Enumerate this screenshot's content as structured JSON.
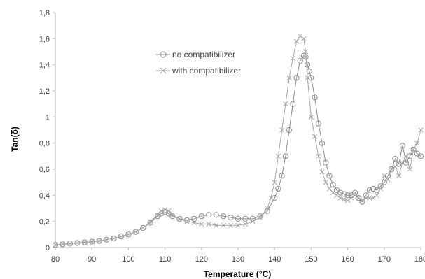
{
  "chart_data": {
    "type": "scatter",
    "xlabel": "Temperature  (°C)",
    "ylabel": "Tan(δ)",
    "xlim": [
      80,
      180
    ],
    "ylim": [
      0,
      1.8
    ],
    "x_ticks": [
      "80",
      "90",
      "100",
      "110",
      "120",
      "130",
      "140",
      "150",
      "160",
      "170",
      "180"
    ],
    "y_ticks": [
      "0",
      "0,2",
      "0,4",
      "0,6",
      "0,8",
      "1",
      "1,2",
      "1,4",
      "1,6",
      "1,8"
    ],
    "grid": false,
    "legend_position": "top-center",
    "series": [
      {
        "name": "no compatibilizer",
        "marker": "circle",
        "color": "#8c8c8c",
        "x": [
          80,
          82,
          84,
          86,
          88,
          90,
          92,
          94,
          96,
          98,
          100,
          102,
          104,
          106,
          108,
          109,
          110,
          111,
          112,
          114,
          116,
          118,
          120,
          122,
          124,
          126,
          128,
          130,
          132,
          134,
          136,
          138,
          140,
          141,
          142,
          143,
          144,
          145,
          146,
          147,
          148,
          148.5,
          149,
          149.5,
          150,
          151,
          152,
          153,
          154,
          155,
          156,
          157,
          158,
          159,
          160,
          161,
          162,
          163,
          164,
          165,
          166,
          167,
          168,
          169,
          170,
          171,
          172,
          173,
          174,
          175,
          176,
          177,
          178,
          179,
          180
        ],
        "y": [
          0.02,
          0.025,
          0.03,
          0.035,
          0.04,
          0.045,
          0.05,
          0.06,
          0.07,
          0.085,
          0.1,
          0.12,
          0.15,
          0.19,
          0.24,
          0.26,
          0.27,
          0.26,
          0.24,
          0.22,
          0.21,
          0.22,
          0.24,
          0.25,
          0.25,
          0.24,
          0.23,
          0.22,
          0.22,
          0.22,
          0.24,
          0.28,
          0.38,
          0.45,
          0.55,
          0.7,
          0.9,
          1.1,
          1.3,
          1.43,
          1.47,
          1.46,
          1.4,
          1.35,
          1.3,
          1.15,
          0.95,
          0.8,
          0.65,
          0.55,
          0.48,
          0.44,
          0.42,
          0.41,
          0.4,
          0.4,
          0.42,
          0.38,
          0.35,
          0.4,
          0.44,
          0.45,
          0.44,
          0.47,
          0.5,
          0.55,
          0.6,
          0.68,
          0.64,
          0.78,
          0.65,
          0.7,
          0.75,
          0.72,
          0.7
        ]
      },
      {
        "name": "with compatibilizer",
        "marker": "x",
        "color": "#a6a6a6",
        "x": [
          80,
          82,
          84,
          86,
          88,
          90,
          92,
          94,
          96,
          98,
          100,
          102,
          104,
          106,
          108,
          109,
          110,
          111,
          112,
          114,
          116,
          118,
          120,
          122,
          124,
          126,
          128,
          130,
          132,
          134,
          136,
          138,
          139,
          140,
          141,
          142,
          143,
          144,
          145,
          146,
          147,
          148,
          148.5,
          149,
          150,
          151,
          152,
          153,
          154,
          155,
          156,
          157,
          158,
          159,
          160,
          161,
          162,
          163,
          164,
          165,
          166,
          167,
          168,
          169,
          170,
          171,
          172,
          173,
          174,
          175,
          176,
          177,
          178,
          179,
          180
        ],
        "y": [
          0.02,
          0.025,
          0.03,
          0.035,
          0.04,
          0.045,
          0.05,
          0.06,
          0.07,
          0.085,
          0.1,
          0.12,
          0.15,
          0.2,
          0.25,
          0.28,
          0.29,
          0.28,
          0.25,
          0.22,
          0.2,
          0.19,
          0.18,
          0.18,
          0.17,
          0.17,
          0.17,
          0.17,
          0.18,
          0.2,
          0.23,
          0.3,
          0.38,
          0.5,
          0.7,
          0.9,
          1.1,
          1.3,
          1.45,
          1.58,
          1.62,
          1.6,
          1.5,
          1.3,
          1.0,
          0.85,
          0.7,
          0.58,
          0.5,
          0.45,
          0.42,
          0.4,
          0.38,
          0.37,
          0.36,
          0.38,
          0.4,
          0.38,
          0.36,
          0.38,
          0.38,
          0.38,
          0.4,
          0.45,
          0.55,
          0.52,
          0.6,
          0.62,
          0.55,
          0.65,
          0.7,
          0.6,
          0.75,
          0.8,
          0.9
        ]
      }
    ]
  }
}
